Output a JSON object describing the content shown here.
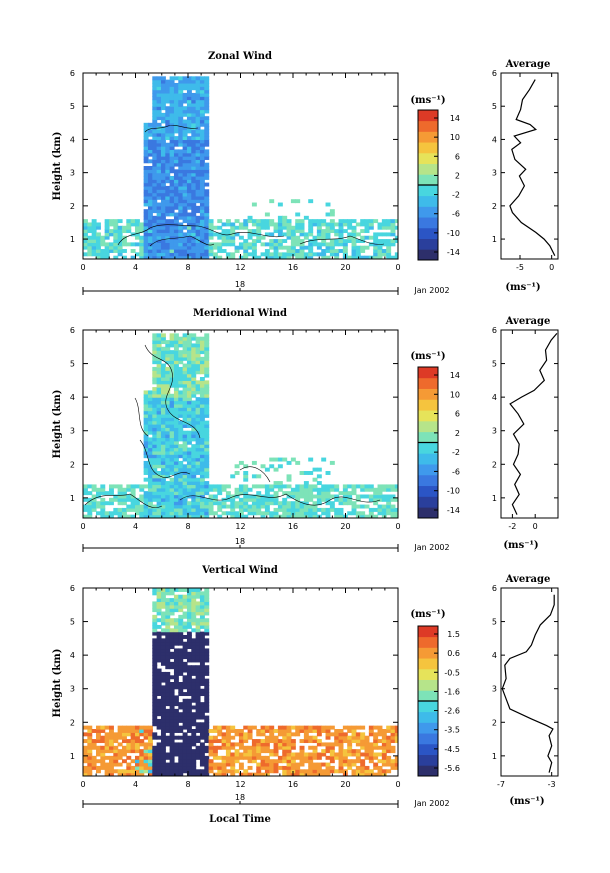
{
  "chart_data": [
    {
      "type": "heatmap",
      "title": "Zonal Wind",
      "ylabel": "Height (km)",
      "xticks": [
        "0",
        "4",
        "8",
        "12",
        "16",
        "20",
        "0"
      ],
      "xlim": [
        0,
        24
      ],
      "yticks": [
        "1",
        "2",
        "3",
        "4",
        "5",
        "6"
      ],
      "ylim": [
        0.4,
        6.0
      ],
      "date_marker": "18",
      "date_label": "Jan 2002",
      "colorbar": {
        "unit": "(ms⁻¹)",
        "ticks": [
          "14",
          "10",
          "6",
          "2",
          "-2",
          "-6",
          "-10",
          "-14"
        ],
        "range": [
          -16,
          16
        ]
      },
      "average": {
        "title": "Average",
        "xlabel": "(ms⁻¹)",
        "xticks": [
          "-5",
          "0"
        ],
        "xlim": [
          -8,
          1
        ],
        "profile": {
          "z": [
            0.5,
            0.8,
            1.0,
            1.2,
            1.5,
            1.8,
            2.0,
            2.3,
            2.6,
            2.9,
            3.1,
            3.4,
            3.7,
            3.9,
            4.1,
            4.3,
            4.45,
            4.6,
            4.9,
            5.2,
            5.5,
            5.8
          ],
          "u": [
            0.5,
            -0.3,
            -1.2,
            -2.5,
            -4.8,
            -6.2,
            -6.6,
            -5.2,
            -4.3,
            -5.1,
            -4.1,
            -5.8,
            -6.3,
            -4.9,
            -5.9,
            -2.5,
            -3.4,
            -5.6,
            -4.9,
            -4.6,
            -3.5,
            -2.6
          ]
        }
      }
    },
    {
      "type": "heatmap",
      "title": "Meridional Wind",
      "ylabel": "Height (km)",
      "xticks": [
        "0",
        "4",
        "8",
        "12",
        "16",
        "20",
        "0"
      ],
      "xlim": [
        0,
        24
      ],
      "yticks": [
        "1",
        "2",
        "3",
        "4",
        "5",
        "6"
      ],
      "ylim": [
        0.4,
        6.0
      ],
      "date_marker": "18",
      "date_label": "Jan 2002",
      "colorbar": {
        "unit": "(ms⁻¹)",
        "ticks": [
          "14",
          "10",
          "6",
          "2",
          "-2",
          "-6",
          "-10",
          "-14"
        ],
        "range": [
          -16,
          16
        ]
      },
      "average": {
        "title": "Average",
        "xlabel": "(ms⁻¹)",
        "xticks": [
          "-2",
          "0"
        ],
        "xlim": [
          -3,
          2
        ],
        "profile": {
          "z": [
            0.5,
            0.8,
            1.1,
            1.4,
            1.7,
            2.0,
            2.3,
            2.6,
            2.9,
            3.2,
            3.5,
            3.8,
            4.0,
            4.2,
            4.5,
            4.8,
            5.1,
            5.4,
            5.7,
            5.9
          ],
          "u": [
            -1.6,
            -2.0,
            -1.4,
            -1.8,
            -1.3,
            -1.9,
            -1.5,
            -1.4,
            -1.9,
            -1.0,
            -1.5,
            -2.2,
            -1.2,
            -0.1,
            0.8,
            0.4,
            1.0,
            0.9,
            1.4,
            1.9
          ]
        }
      }
    },
    {
      "type": "heatmap",
      "title": "Vertical Wind",
      "ylabel": "Height (km)",
      "xlabel": "Local Time",
      "xticks": [
        "0",
        "4",
        "8",
        "12",
        "16",
        "20",
        "0"
      ],
      "xlim": [
        0,
        24
      ],
      "yticks": [
        "1",
        "2",
        "3",
        "4",
        "5",
        "6"
      ],
      "ylim": [
        0.4,
        6.0
      ],
      "date_marker": "18",
      "date_label": "Jan 2002",
      "colorbar": {
        "unit": "(ms⁻¹)",
        "ticks": [
          "1.5",
          "0.6",
          "-0.5",
          "-1.6",
          "-2.6",
          "-3.5",
          "-4.5",
          "-5.6"
        ],
        "range": [
          -6.1,
          2.0
        ]
      },
      "average": {
        "title": "Average",
        "xlabel": "(ms⁻¹)",
        "xticks": [
          "-7",
          "-3"
        ],
        "xlim": [
          -7,
          -2.5
        ],
        "profile": {
          "z": [
            0.5,
            0.8,
            1.0,
            1.3,
            1.6,
            1.8,
            1.9,
            2.1,
            2.4,
            2.8,
            3.0,
            3.3,
            3.7,
            3.9,
            4.1,
            4.3,
            4.6,
            4.9,
            5.2,
            5.5,
            5.8
          ],
          "u": [
            -3.2,
            -3.0,
            -3.3,
            -3.0,
            -3.2,
            -2.9,
            -3.4,
            -4.6,
            -6.3,
            -6.7,
            -6.9,
            -6.6,
            -6.7,
            -6.3,
            -5.0,
            -4.6,
            -4.3,
            -3.9,
            -3.1,
            -2.8,
            -2.8
          ]
        }
      }
    }
  ]
}
